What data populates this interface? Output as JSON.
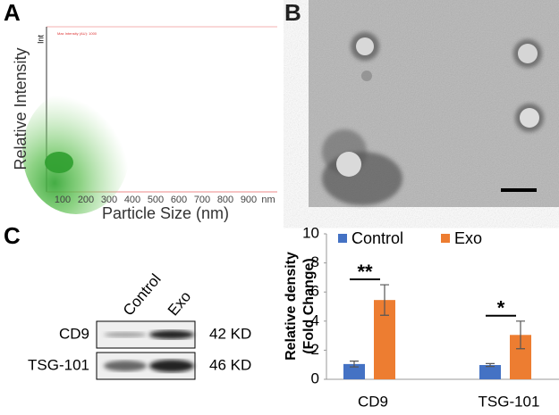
{
  "panel_a": {
    "label": "A",
    "y_label": "Relative Intensity",
    "x_label": "Particle Size (nm)",
    "axis_note": "Max Intensity (AU): 1000",
    "int_label": "Int",
    "x_ticks": [
      100,
      200,
      300,
      400,
      500,
      600,
      700,
      800,
      900
    ],
    "x_unit": "nm"
  },
  "panel_b": {
    "label": "B"
  },
  "panel_c": {
    "label": "C",
    "lanes": [
      "Control",
      "Exo"
    ],
    "rows": [
      {
        "protein": "CD9",
        "size": "42 KD"
      },
      {
        "protein": "TSG-101",
        "size": "46 KD"
      }
    ]
  },
  "chart_data": {
    "type": "bar",
    "y_label": [
      "Relative density",
      "(Fold Change)"
    ],
    "categories": [
      "CD9",
      "TSG-101"
    ],
    "series": [
      {
        "name": "Control",
        "color": "#4472c4",
        "values": [
          1.05,
          0.98
        ],
        "errors": [
          0.2,
          0.1
        ]
      },
      {
        "name": "Exo",
        "color": "#ed7d31",
        "values": [
          5.45,
          3.05
        ],
        "errors": [
          1.05,
          0.95
        ]
      }
    ],
    "annotations": [
      "**",
      "*"
    ],
    "ylim": [
      0,
      10
    ],
    "yticks": [
      0,
      2,
      4,
      6,
      8,
      10
    ],
    "legend": "top"
  }
}
